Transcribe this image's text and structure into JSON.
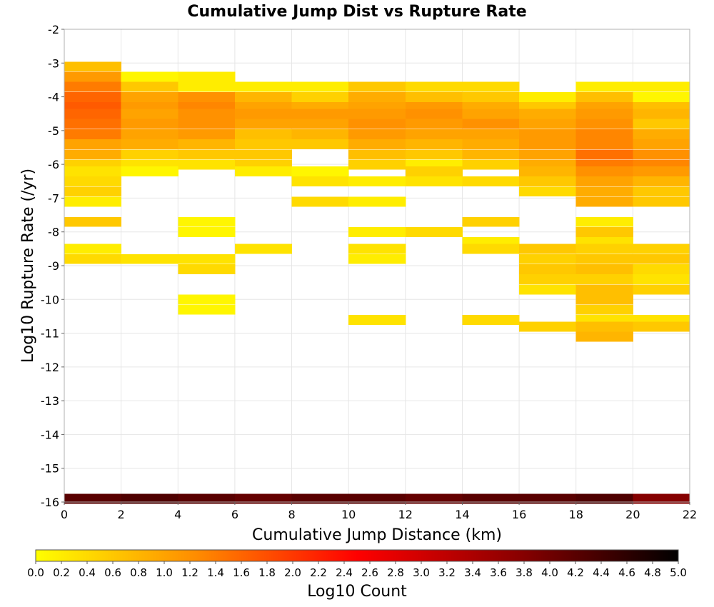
{
  "chart_data": {
    "type": "heatmap",
    "title": "Cumulative Jump Dist vs Rupture Rate",
    "xlabel": "Cumulative Jump Distance (km)",
    "ylabel": "Log10 Rupture Rate (/yr)",
    "xlim": [
      0,
      22
    ],
    "ylim": [
      -16,
      -2
    ],
    "x_ticks": [
      0,
      2,
      4,
      6,
      8,
      10,
      12,
      14,
      16,
      18,
      20,
      22
    ],
    "y_ticks": [
      -2,
      -3,
      -4,
      -5,
      -6,
      -7,
      -8,
      -9,
      -10,
      -11,
      -12,
      -13,
      -14,
      -15,
      -16
    ],
    "x_bin_width": 2,
    "y_bin_height": 0.283,
    "grid": true,
    "colorbar": {
      "label": "Log10 Count",
      "range": [
        0.0,
        5.0
      ],
      "ticks": [
        "0.0",
        "0.2",
        "0.4",
        "0.6",
        "0.8",
        "1.0",
        "1.2",
        "1.4",
        "1.6",
        "1.8",
        "2.0",
        "2.2",
        "2.4",
        "2.6",
        "2.8",
        "3.0",
        "3.2",
        "3.4",
        "3.6",
        "3.8",
        "4.0",
        "4.2",
        "4.4",
        "4.6",
        "4.8",
        "5.0"
      ],
      "colors": [
        "#ffff00",
        "#ff8c00",
        "#ff0000",
        "#8b0000",
        "#000000"
      ]
    },
    "cells": [
      {
        "x": 0,
        "y": -3.1,
        "v": 0.7
      },
      {
        "x": 0,
        "y": -3.4,
        "v": 1.1
      },
      {
        "x": 0,
        "y": -3.7,
        "v": 1.4
      },
      {
        "x": 0,
        "y": -4.0,
        "v": 1.6
      },
      {
        "x": 0,
        "y": -4.3,
        "v": 1.7
      },
      {
        "x": 0,
        "y": -4.5,
        "v": 1.6
      },
      {
        "x": 0,
        "y": -4.8,
        "v": 1.5
      },
      {
        "x": 0,
        "y": -5.1,
        "v": 1.4
      },
      {
        "x": 0,
        "y": -5.4,
        "v": 1.0
      },
      {
        "x": 0,
        "y": -5.7,
        "v": 0.9
      },
      {
        "x": 0,
        "y": -6.0,
        "v": 0.5
      },
      {
        "x": 0,
        "y": -6.2,
        "v": 0.3
      },
      {
        "x": 0,
        "y": -6.5,
        "v": 0.4
      },
      {
        "x": 0,
        "y": -6.8,
        "v": 0.5
      },
      {
        "x": 0,
        "y": -7.1,
        "v": 0.2
      },
      {
        "x": 0,
        "y": -7.7,
        "v": 0.6
      },
      {
        "x": 0,
        "y": -8.5,
        "v": 0.2
      },
      {
        "x": 0,
        "y": -8.8,
        "v": 0.4
      },
      {
        "x": 2,
        "y": -3.4,
        "v": 0.1
      },
      {
        "x": 2,
        "y": -3.7,
        "v": 0.6
      },
      {
        "x": 2,
        "y": -4.0,
        "v": 1.0
      },
      {
        "x": 2,
        "y": -4.3,
        "v": 1.1
      },
      {
        "x": 2,
        "y": -4.5,
        "v": 1.0
      },
      {
        "x": 2,
        "y": -4.8,
        "v": 1.1
      },
      {
        "x": 2,
        "y": -5.1,
        "v": 1.0
      },
      {
        "x": 2,
        "y": -5.4,
        "v": 0.9
      },
      {
        "x": 2,
        "y": -5.7,
        "v": 0.5
      },
      {
        "x": 2,
        "y": -6.0,
        "v": 0.3
      },
      {
        "x": 2,
        "y": -6.2,
        "v": 0.1
      },
      {
        "x": 2,
        "y": -8.8,
        "v": 0.3
      },
      {
        "x": 4,
        "y": -3.4,
        "v": 0.2
      },
      {
        "x": 4,
        "y": -3.7,
        "v": 0.2
      },
      {
        "x": 4,
        "y": -4.0,
        "v": 1.2
      },
      {
        "x": 4,
        "y": -4.3,
        "v": 1.3
      },
      {
        "x": 4,
        "y": -4.5,
        "v": 1.2
      },
      {
        "x": 4,
        "y": -4.8,
        "v": 1.2
      },
      {
        "x": 4,
        "y": -5.1,
        "v": 1.1
      },
      {
        "x": 4,
        "y": -5.4,
        "v": 0.8
      },
      {
        "x": 4,
        "y": -5.7,
        "v": 0.6
      },
      {
        "x": 4,
        "y": -6.0,
        "v": 0.3
      },
      {
        "x": 4,
        "y": -7.7,
        "v": 0.1
      },
      {
        "x": 4,
        "y": -8.0,
        "v": 0.1
      },
      {
        "x": 4,
        "y": -8.8,
        "v": 0.3
      },
      {
        "x": 4,
        "y": -9.1,
        "v": 0.4
      },
      {
        "x": 4,
        "y": -10.0,
        "v": 0.1
      },
      {
        "x": 4,
        "y": -10.3,
        "v": 0.1
      },
      {
        "x": 6,
        "y": -3.7,
        "v": 0.2
      },
      {
        "x": 6,
        "y": -4.0,
        "v": 0.8
      },
      {
        "x": 6,
        "y": -4.3,
        "v": 1.0
      },
      {
        "x": 6,
        "y": -4.5,
        "v": 1.1
      },
      {
        "x": 6,
        "y": -4.8,
        "v": 1.0
      },
      {
        "x": 6,
        "y": -5.1,
        "v": 0.7
      },
      {
        "x": 6,
        "y": -5.4,
        "v": 0.6
      },
      {
        "x": 6,
        "y": -5.7,
        "v": 0.6
      },
      {
        "x": 6,
        "y": -6.0,
        "v": 0.5
      },
      {
        "x": 6,
        "y": -6.2,
        "v": 0.2
      },
      {
        "x": 6,
        "y": -8.5,
        "v": 0.3
      },
      {
        "x": 8,
        "y": -3.7,
        "v": 0.2
      },
      {
        "x": 8,
        "y": -4.0,
        "v": 0.5
      },
      {
        "x": 8,
        "y": -4.3,
        "v": 0.9
      },
      {
        "x": 8,
        "y": -4.5,
        "v": 1.1
      },
      {
        "x": 8,
        "y": -4.8,
        "v": 1.0
      },
      {
        "x": 8,
        "y": -5.1,
        "v": 0.8
      },
      {
        "x": 8,
        "y": -5.4,
        "v": 0.6
      },
      {
        "x": 8,
        "y": -6.2,
        "v": 0.1
      },
      {
        "x": 8,
        "y": -6.5,
        "v": 0.3
      },
      {
        "x": 8,
        "y": -7.1,
        "v": 0.4
      },
      {
        "x": 10,
        "y": -3.7,
        "v": 0.6
      },
      {
        "x": 10,
        "y": -4.0,
        "v": 0.9
      },
      {
        "x": 10,
        "y": -4.3,
        "v": 1.0
      },
      {
        "x": 10,
        "y": -4.5,
        "v": 1.1
      },
      {
        "x": 10,
        "y": -4.8,
        "v": 1.2
      },
      {
        "x": 10,
        "y": -5.1,
        "v": 1.1
      },
      {
        "x": 10,
        "y": -5.4,
        "v": 0.9
      },
      {
        "x": 10,
        "y": -5.7,
        "v": 0.7
      },
      {
        "x": 10,
        "y": -6.0,
        "v": 0.5
      },
      {
        "x": 10,
        "y": -6.5,
        "v": 0.2
      },
      {
        "x": 10,
        "y": -7.1,
        "v": 0.2
      },
      {
        "x": 10,
        "y": -8.0,
        "v": 0.2
      },
      {
        "x": 10,
        "y": -8.5,
        "v": 0.3
      },
      {
        "x": 10,
        "y": -8.8,
        "v": 0.2
      },
      {
        "x": 10,
        "y": -10.6,
        "v": 0.3
      },
      {
        "x": 12,
        "y": -3.7,
        "v": 0.4
      },
      {
        "x": 12,
        "y": -4.0,
        "v": 0.7
      },
      {
        "x": 12,
        "y": -4.3,
        "v": 1.1
      },
      {
        "x": 12,
        "y": -4.5,
        "v": 1.2
      },
      {
        "x": 12,
        "y": -4.8,
        "v": 1.1
      },
      {
        "x": 12,
        "y": -5.1,
        "v": 1.0
      },
      {
        "x": 12,
        "y": -5.4,
        "v": 0.8
      },
      {
        "x": 12,
        "y": -5.7,
        "v": 0.6
      },
      {
        "x": 12,
        "y": -6.0,
        "v": 0.2
      },
      {
        "x": 12,
        "y": -6.2,
        "v": 0.5
      },
      {
        "x": 12,
        "y": -6.5,
        "v": 0.3
      },
      {
        "x": 12,
        "y": -8.0,
        "v": 0.4
      },
      {
        "x": 14,
        "y": -3.7,
        "v": 0.4
      },
      {
        "x": 14,
        "y": -4.0,
        "v": 0.6
      },
      {
        "x": 14,
        "y": -4.3,
        "v": 0.9
      },
      {
        "x": 14,
        "y": -4.5,
        "v": 1.0
      },
      {
        "x": 14,
        "y": -4.8,
        "v": 1.2
      },
      {
        "x": 14,
        "y": -5.1,
        "v": 1.0
      },
      {
        "x": 14,
        "y": -5.4,
        "v": 0.9
      },
      {
        "x": 14,
        "y": -5.7,
        "v": 0.8
      },
      {
        "x": 14,
        "y": -6.0,
        "v": 0.5
      },
      {
        "x": 14,
        "y": -6.5,
        "v": 0.4
      },
      {
        "x": 14,
        "y": -7.7,
        "v": 0.5
      },
      {
        "x": 14,
        "y": -8.3,
        "v": 0.2
      },
      {
        "x": 14,
        "y": -8.5,
        "v": 0.4
      },
      {
        "x": 14,
        "y": -10.6,
        "v": 0.4
      },
      {
        "x": 16,
        "y": -4.0,
        "v": 0.2
      },
      {
        "x": 16,
        "y": -4.3,
        "v": 0.6
      },
      {
        "x": 16,
        "y": -4.5,
        "v": 0.9
      },
      {
        "x": 16,
        "y": -4.8,
        "v": 1.0
      },
      {
        "x": 16,
        "y": -5.1,
        "v": 1.1
      },
      {
        "x": 16,
        "y": -5.4,
        "v": 1.1
      },
      {
        "x": 16,
        "y": -5.7,
        "v": 1.0
      },
      {
        "x": 16,
        "y": -6.0,
        "v": 0.9
      },
      {
        "x": 16,
        "y": -6.2,
        "v": 0.8
      },
      {
        "x": 16,
        "y": -6.5,
        "v": 0.6
      },
      {
        "x": 16,
        "y": -6.8,
        "v": 0.4
      },
      {
        "x": 16,
        "y": -8.5,
        "v": 0.6
      },
      {
        "x": 16,
        "y": -8.8,
        "v": 0.5
      },
      {
        "x": 16,
        "y": -9.1,
        "v": 0.6
      },
      {
        "x": 16,
        "y": -9.4,
        "v": 0.5
      },
      {
        "x": 16,
        "y": -9.7,
        "v": 0.3
      },
      {
        "x": 16,
        "y": -10.8,
        "v": 0.5
      },
      {
        "x": 18,
        "y": -3.7,
        "v": 0.2
      },
      {
        "x": 18,
        "y": -4.0,
        "v": 0.7
      },
      {
        "x": 18,
        "y": -4.3,
        "v": 1.0
      },
      {
        "x": 18,
        "y": -4.5,
        "v": 1.1
      },
      {
        "x": 18,
        "y": -4.8,
        "v": 1.2
      },
      {
        "x": 18,
        "y": -5.1,
        "v": 1.3
      },
      {
        "x": 18,
        "y": -5.4,
        "v": 1.3
      },
      {
        "x": 18,
        "y": -5.7,
        "v": 1.5
      },
      {
        "x": 18,
        "y": -6.0,
        "v": 1.4
      },
      {
        "x": 18,
        "y": -6.2,
        "v": 1.2
      },
      {
        "x": 18,
        "y": -6.5,
        "v": 1.0
      },
      {
        "x": 18,
        "y": -6.8,
        "v": 0.9
      },
      {
        "x": 18,
        "y": -7.1,
        "v": 0.9
      },
      {
        "x": 18,
        "y": -7.7,
        "v": 0.2
      },
      {
        "x": 18,
        "y": -8.0,
        "v": 0.6
      },
      {
        "x": 18,
        "y": -8.3,
        "v": 0.3
      },
      {
        "x": 18,
        "y": -8.5,
        "v": 0.5
      },
      {
        "x": 18,
        "y": -8.8,
        "v": 0.6
      },
      {
        "x": 18,
        "y": -9.1,
        "v": 0.7
      },
      {
        "x": 18,
        "y": -9.4,
        "v": 0.5
      },
      {
        "x": 18,
        "y": -9.7,
        "v": 0.7
      },
      {
        "x": 18,
        "y": -10.0,
        "v": 0.7
      },
      {
        "x": 18,
        "y": -10.3,
        "v": 0.5
      },
      {
        "x": 18,
        "y": -10.6,
        "v": 0.3
      },
      {
        "x": 18,
        "y": -10.8,
        "v": 0.7
      },
      {
        "x": 18,
        "y": -11.1,
        "v": 0.8
      },
      {
        "x": 20,
        "y": -3.7,
        "v": 0.2
      },
      {
        "x": 20,
        "y": -4.0,
        "v": 0.1
      },
      {
        "x": 20,
        "y": -4.3,
        "v": 0.7
      },
      {
        "x": 20,
        "y": -4.5,
        "v": 0.8
      },
      {
        "x": 20,
        "y": -4.8,
        "v": 0.6
      },
      {
        "x": 20,
        "y": -5.1,
        "v": 0.9
      },
      {
        "x": 20,
        "y": -5.4,
        "v": 1.0
      },
      {
        "x": 20,
        "y": -5.7,
        "v": 1.2
      },
      {
        "x": 20,
        "y": -6.0,
        "v": 1.3
      },
      {
        "x": 20,
        "y": -6.2,
        "v": 1.1
      },
      {
        "x": 20,
        "y": -6.5,
        "v": 0.8
      },
      {
        "x": 20,
        "y": -6.8,
        "v": 0.6
      },
      {
        "x": 20,
        "y": -7.1,
        "v": 0.6
      },
      {
        "x": 20,
        "y": -8.5,
        "v": 0.5
      },
      {
        "x": 20,
        "y": -8.8,
        "v": 0.6
      },
      {
        "x": 20,
        "y": -9.1,
        "v": 0.4
      },
      {
        "x": 20,
        "y": -9.4,
        "v": 0.3
      },
      {
        "x": 20,
        "y": -9.7,
        "v": 0.5
      },
      {
        "x": 20,
        "y": -10.6,
        "v": 0.3
      },
      {
        "x": 20,
        "y": -10.8,
        "v": 0.6
      },
      {
        "x": 0,
        "y": -15.9,
        "v": 4.2
      },
      {
        "x": 2,
        "y": -15.9,
        "v": 4.3
      },
      {
        "x": 4,
        "y": -15.9,
        "v": 4.2
      },
      {
        "x": 6,
        "y": -15.9,
        "v": 4.1
      },
      {
        "x": 8,
        "y": -15.9,
        "v": 4.2
      },
      {
        "x": 10,
        "y": -15.9,
        "v": 4.2
      },
      {
        "x": 12,
        "y": -15.9,
        "v": 4.1
      },
      {
        "x": 14,
        "y": -15.9,
        "v": 4.2
      },
      {
        "x": 16,
        "y": -15.9,
        "v": 4.2
      },
      {
        "x": 18,
        "y": -15.9,
        "v": 4.3
      },
      {
        "x": 20,
        "y": -15.9,
        "v": 3.8
      }
    ]
  }
}
